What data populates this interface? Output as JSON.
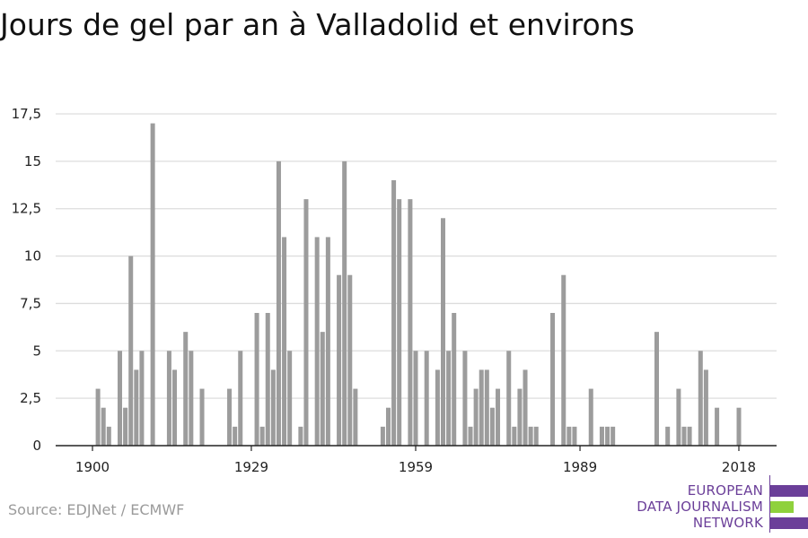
{
  "title": "Jours de gel par an à Valladolid et environs",
  "source": "Source: EDJNet / ECMWF",
  "logo": {
    "lines": [
      "EUROPEAN",
      "DATA JOURNALISM",
      "NETWORK"
    ],
    "colors": {
      "purple": "#6b3f99",
      "green": "#8fd13c"
    }
  },
  "colors": {
    "bar": "#9c9c9c",
    "grid": "#dddddd",
    "axis": "#222222"
  },
  "chart_data": {
    "type": "bar",
    "title": "Jours de gel par an à Valladolid et environs",
    "xlabel": "",
    "ylabel": "",
    "xlim": [
      1900,
      2018
    ],
    "ylim": [
      0,
      17.5
    ],
    "x_ticks": [
      1900,
      1929,
      1959,
      1989,
      2018
    ],
    "x_tick_labels": [
      "1900",
      "1929",
      "1959",
      "1989",
      "2018"
    ],
    "y_ticks": [
      0,
      2.5,
      5,
      7.5,
      10,
      12.5,
      15,
      17.5
    ],
    "y_tick_labels": [
      "0",
      "2,5",
      "5",
      "7,5",
      "10",
      "12,5",
      "15",
      "17,5"
    ],
    "grid": true,
    "x": [
      1900,
      1901,
      1902,
      1903,
      1904,
      1905,
      1906,
      1907,
      1908,
      1909,
      1910,
      1911,
      1912,
      1913,
      1914,
      1915,
      1916,
      1917,
      1918,
      1919,
      1920,
      1921,
      1922,
      1923,
      1924,
      1925,
      1926,
      1927,
      1928,
      1929,
      1930,
      1931,
      1932,
      1933,
      1934,
      1935,
      1936,
      1937,
      1938,
      1939,
      1940,
      1941,
      1942,
      1943,
      1944,
      1945,
      1946,
      1947,
      1948,
      1949,
      1950,
      1951,
      1952,
      1953,
      1954,
      1955,
      1956,
      1957,
      1958,
      1959,
      1960,
      1961,
      1962,
      1963,
      1964,
      1965,
      1966,
      1967,
      1968,
      1969,
      1970,
      1971,
      1972,
      1973,
      1974,
      1975,
      1976,
      1977,
      1978,
      1979,
      1980,
      1981,
      1982,
      1983,
      1984,
      1985,
      1986,
      1987,
      1988,
      1989,
      1990,
      1991,
      1992,
      1993,
      1994,
      1995,
      1996,
      1997,
      1998,
      1999,
      2000,
      2001,
      2002,
      2003,
      2004,
      2005,
      2006,
      2007,
      2008,
      2009,
      2010,
      2011,
      2012,
      2013,
      2014,
      2015,
      2016,
      2017,
      2018
    ],
    "values": [
      0,
      3,
      2,
      1,
      0,
      5,
      2,
      10,
      4,
      5,
      0,
      17,
      0,
      0,
      5,
      4,
      0,
      6,
      5,
      0,
      3,
      0,
      0,
      0,
      0,
      3,
      1,
      5,
      0,
      0,
      7,
      1,
      7,
      4,
      15,
      11,
      5,
      0,
      1,
      13,
      0,
      11,
      6,
      11,
      0,
      9,
      15,
      9,
      3,
      0,
      0,
      0,
      0,
      1,
      2,
      14,
      13,
      0,
      13,
      5,
      0,
      5,
      0,
      4,
      12,
      5,
      7,
      0,
      5,
      1,
      3,
      4,
      4,
      2,
      3,
      0,
      5,
      1,
      3,
      4,
      1,
      1,
      0,
      0,
      7,
      0,
      9,
      1,
      1,
      0,
      0,
      3,
      0,
      1,
      1,
      1,
      0,
      0,
      0,
      0,
      0,
      0,
      0,
      6,
      0,
      1,
      0,
      3,
      1,
      1,
      0,
      5,
      4,
      0,
      2,
      0,
      0,
      0,
      2
    ]
  }
}
